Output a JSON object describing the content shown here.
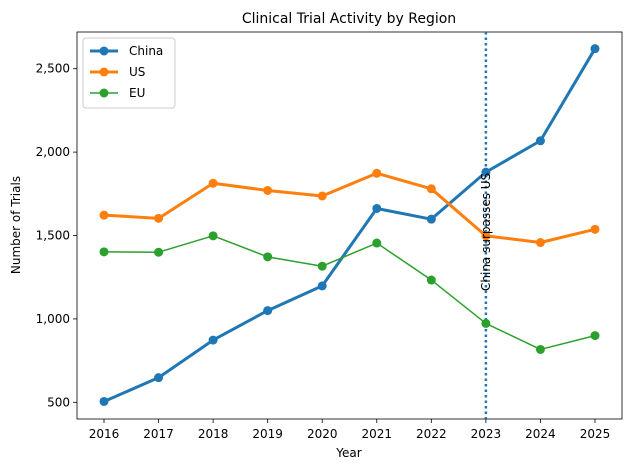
{
  "chart_data": {
    "type": "line",
    "title": "Clinical Trial Activity by Region",
    "xlabel": "Year",
    "ylabel": "Number of Trials",
    "categories": [
      "2016",
      "2017",
      "2018",
      "2019",
      "2020",
      "2021",
      "2022",
      "2023",
      "2024",
      "2025"
    ],
    "ylim": [
      400,
      2720
    ],
    "yticks": [
      500,
      1000,
      1500,
      2000,
      2500
    ],
    "ytick_labels": [
      "500",
      "1,000",
      "1,500",
      "2,000",
      "2,500"
    ],
    "grid": false,
    "legend_position": "top-left",
    "series": [
      {
        "name": "China",
        "color": "#1f77b4",
        "line_width": 3,
        "values": [
          505,
          648,
          873,
          1050,
          1198,
          1662,
          1598,
          1880,
          2068,
          2620
        ]
      },
      {
        "name": "US",
        "color": "#ff7f0e",
        "line_width": 3,
        "values": [
          1622,
          1603,
          1813,
          1770,
          1737,
          1873,
          1780,
          1498,
          1458,
          1537
        ]
      },
      {
        "name": "EU",
        "color": "#2ca02c",
        "line_width": 1.5,
        "values": [
          1402,
          1400,
          1498,
          1372,
          1316,
          1455,
          1233,
          973,
          817,
          900
        ]
      }
    ],
    "annotation": {
      "text": "China surpasses US",
      "x": "2023",
      "line_color": "#1f77b4",
      "line_style": "dotted"
    }
  }
}
